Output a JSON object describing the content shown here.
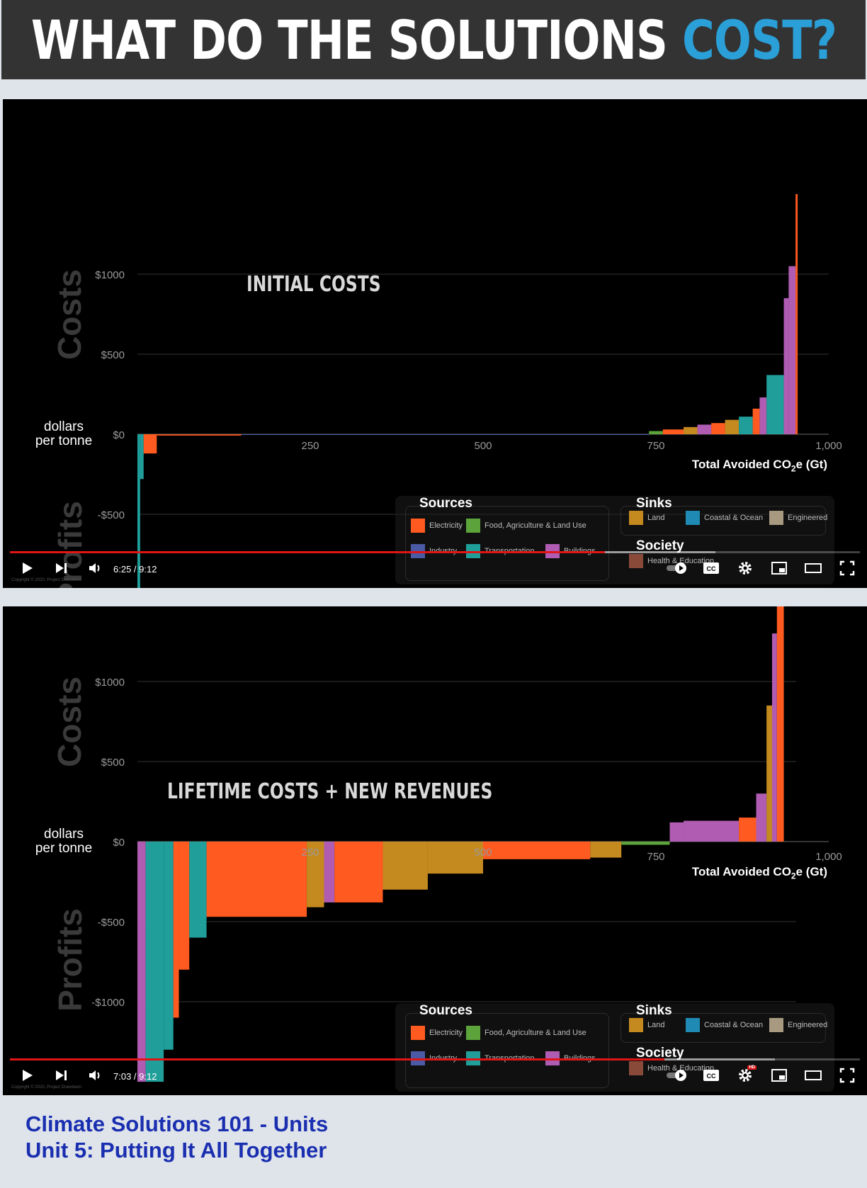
{
  "header": {
    "title_main": "WHAT DO THE SOLUTIONS",
    "title_accent": "COST?",
    "bg_color": "#333333",
    "accent_color": "#2a9fd8"
  },
  "colors": {
    "electricity": "#ff5a1f",
    "food": "#5ba33a",
    "industry": "#4a5aa5",
    "transportation": "#1f9e9a",
    "buildings": "#b15cb3",
    "land": "#c58a1f",
    "coastal": "#1f8ab3",
    "engineered": "#a89a80",
    "health": "#8a4a3a",
    "progress": "#e01616"
  },
  "legend": {
    "sources_title": "Sources",
    "sinks_title": "Sinks",
    "society_title": "Society",
    "sources": [
      "Electricity",
      "Food, Agriculture & Land Use",
      "Industry",
      "Transportation",
      "Buildings"
    ],
    "sinks": [
      "Land",
      "Coastal & Ocean",
      "Engineered"
    ],
    "society": [
      "Health & Education"
    ]
  },
  "chart_common": {
    "side_top": "Costs",
    "side_bottom": "Profits",
    "units_line1": "dollars",
    "units_line2": "per tonne",
    "x_title": "Total Avoided CO",
    "x_title_sub": "2",
    "x_title_tail": "e (Gt)",
    "y_ticks": [
      "$1000",
      "$500",
      "$0",
      "-$500",
      "-$1000"
    ],
    "x_ticks": [
      "250",
      "500",
      "750",
      "1,000"
    ]
  },
  "videos": [
    {
      "overlay_label": "INITIAL COSTS",
      "time": "6:25 / 9:12",
      "progress": 0.7,
      "copyright": "Copyright © 2020, Project Drawdown"
    },
    {
      "overlay_label": "LIFETIME COSTS + NEW REVENUES",
      "time": "7:03 / 9:12",
      "progress": 0.77,
      "copyright": "Copyright © 2020, Project Drawdown"
    }
  ],
  "chart_data": [
    {
      "type": "bar",
      "title": "INITIAL COSTS",
      "xlabel": "Total Avoided CO2e (Gt)",
      "ylabel": "dollars per tonne",
      "xlim": [
        0,
        1000
      ],
      "ylim": [
        -1200,
        1500
      ],
      "bars": [
        {
          "x0": 0,
          "x1": 4,
          "y": -1150,
          "cat": "transportation"
        },
        {
          "x0": 4,
          "x1": 9,
          "y": -280,
          "cat": "transportation"
        },
        {
          "x0": 9,
          "x1": 28,
          "y": -120,
          "cat": "electricity"
        },
        {
          "x0": 28,
          "x1": 150,
          "y": -8,
          "cat": "electricity"
        },
        {
          "x0": 150,
          "x1": 740,
          "y": -4,
          "cat": "industry"
        },
        {
          "x0": 740,
          "x1": 760,
          "y": 20,
          "cat": "food"
        },
        {
          "x0": 760,
          "x1": 790,
          "y": 30,
          "cat": "electricity"
        },
        {
          "x0": 790,
          "x1": 810,
          "y": 45,
          "cat": "land"
        },
        {
          "x0": 810,
          "x1": 830,
          "y": 60,
          "cat": "buildings"
        },
        {
          "x0": 830,
          "x1": 850,
          "y": 70,
          "cat": "electricity"
        },
        {
          "x0": 850,
          "x1": 870,
          "y": 90,
          "cat": "land"
        },
        {
          "x0": 870,
          "x1": 890,
          "y": 110,
          "cat": "transportation"
        },
        {
          "x0": 890,
          "x1": 900,
          "y": 160,
          "cat": "electricity"
        },
        {
          "x0": 900,
          "x1": 910,
          "y": 230,
          "cat": "buildings"
        },
        {
          "x0": 910,
          "x1": 935,
          "y": 370,
          "cat": "transportation"
        },
        {
          "x0": 935,
          "x1": 942,
          "y": 850,
          "cat": "buildings"
        },
        {
          "x0": 942,
          "x1": 952,
          "y": 1050,
          "cat": "buildings"
        },
        {
          "x0": 952,
          "x1": 955,
          "y": 1500,
          "cat": "electricity"
        }
      ]
    },
    {
      "type": "bar",
      "title": "LIFETIME COSTS + NEW REVENUES",
      "xlabel": "Total Avoided CO2e (Gt)",
      "ylabel": "dollars per tonne",
      "xlim": [
        0,
        1000
      ],
      "ylim": [
        -1500,
        1500
      ],
      "bars": [
        {
          "x0": 0,
          "x1": 12,
          "y": -1500,
          "cat": "buildings"
        },
        {
          "x0": 12,
          "x1": 38,
          "y": -1500,
          "cat": "transportation"
        },
        {
          "x0": 38,
          "x1": 52,
          "y": -1300,
          "cat": "transportation"
        },
        {
          "x0": 52,
          "x1": 60,
          "y": -1100,
          "cat": "electricity"
        },
        {
          "x0": 60,
          "x1": 75,
          "y": -800,
          "cat": "electricity"
        },
        {
          "x0": 75,
          "x1": 100,
          "y": -600,
          "cat": "transportation"
        },
        {
          "x0": 100,
          "x1": 125,
          "y": -470,
          "cat": "electricity"
        },
        {
          "x0": 125,
          "x1": 245,
          "y": -470,
          "cat": "electricity"
        },
        {
          "x0": 245,
          "x1": 270,
          "y": -410,
          "cat": "land"
        },
        {
          "x0": 270,
          "x1": 285,
          "y": -380,
          "cat": "buildings"
        },
        {
          "x0": 285,
          "x1": 355,
          "y": -380,
          "cat": "electricity"
        },
        {
          "x0": 355,
          "x1": 420,
          "y": -300,
          "cat": "land"
        },
        {
          "x0": 420,
          "x1": 500,
          "y": -200,
          "cat": "land"
        },
        {
          "x0": 500,
          "x1": 655,
          "y": -110,
          "cat": "electricity"
        },
        {
          "x0": 655,
          "x1": 700,
          "y": -100,
          "cat": "land"
        },
        {
          "x0": 700,
          "x1": 770,
          "y": -20,
          "cat": "food"
        },
        {
          "x0": 770,
          "x1": 790,
          "y": 120,
          "cat": "buildings"
        },
        {
          "x0": 790,
          "x1": 870,
          "y": 130,
          "cat": "buildings"
        },
        {
          "x0": 870,
          "x1": 895,
          "y": 150,
          "cat": "electricity"
        },
        {
          "x0": 895,
          "x1": 910,
          "y": 300,
          "cat": "buildings"
        },
        {
          "x0": 910,
          "x1": 918,
          "y": 850,
          "cat": "land"
        },
        {
          "x0": 918,
          "x1": 925,
          "y": 1300,
          "cat": "buildings"
        },
        {
          "x0": 925,
          "x1": 935,
          "y": 1500,
          "cat": "electricity"
        }
      ]
    }
  ],
  "footer": {
    "line1": "Climate Solutions 101 - Units",
    "line2": "Unit 5: Putting It All Together"
  }
}
